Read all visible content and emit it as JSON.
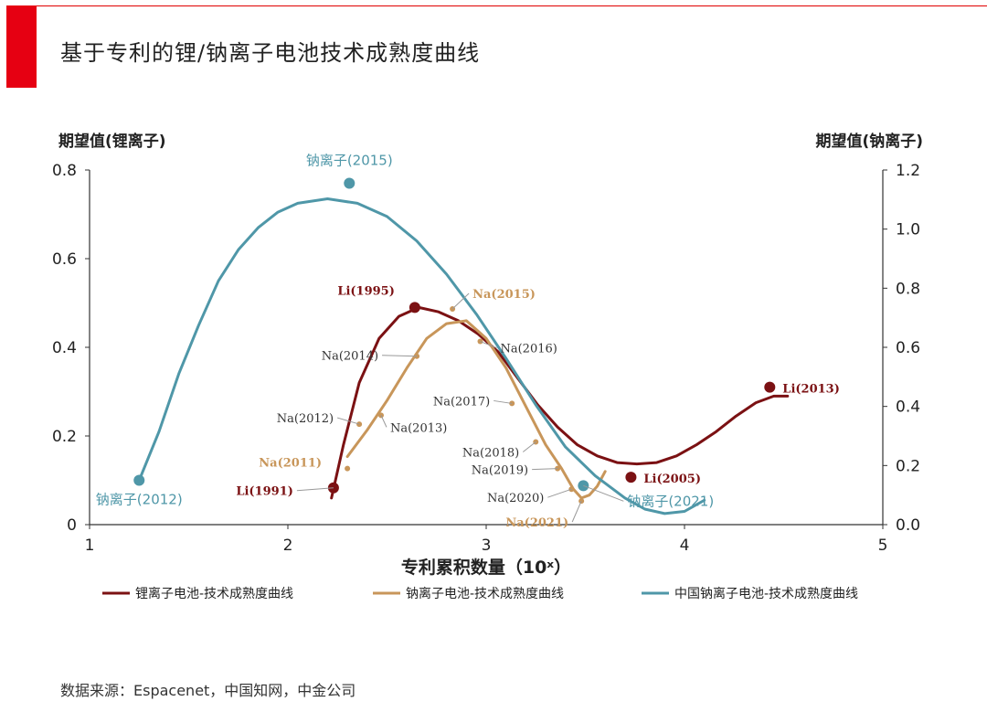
{
  "page": {
    "title": "基于专利的锂/钠离子电池技术成熟度曲线",
    "source": "数据来源：Espacenet，中国知网，中金公司"
  },
  "colors": {
    "li": "#7b1113",
    "na": "#c8965a",
    "cn_na": "#4f97a8",
    "accent": "#e60012"
  },
  "chart_data": {
    "type": "line",
    "xlabel": "专利累积数量（10ˣ）",
    "ylabel_left": "期望值(锂离子)",
    "ylabel_right": "期望值(钠离子)",
    "xlim": [
      1,
      5
    ],
    "ylim_left": [
      0,
      0.8
    ],
    "ylim_right": [
      0,
      1.2
    ],
    "x_ticks": [
      "1",
      "2",
      "3",
      "4",
      "5"
    ],
    "y_ticks_left": [
      "0",
      "0.2",
      "0.4",
      "0.6",
      "0.8"
    ],
    "y_ticks_right": [
      "0.0",
      "0.2",
      "0.4",
      "0.6",
      "0.8",
      "1.0",
      "1.2"
    ],
    "grid": false,
    "legend_position": "bottom",
    "series": [
      {
        "name": "锂离子电池-技术成熟度曲线",
        "axis": "left",
        "curve": [
          [
            2.22,
            0.06
          ],
          [
            2.28,
            0.18
          ],
          [
            2.36,
            0.32
          ],
          [
            2.46,
            0.42
          ],
          [
            2.56,
            0.47
          ],
          [
            2.66,
            0.49
          ],
          [
            2.76,
            0.48
          ],
          [
            2.86,
            0.46
          ],
          [
            2.96,
            0.43
          ],
          [
            3.06,
            0.39
          ],
          [
            3.16,
            0.33
          ],
          [
            3.26,
            0.27
          ],
          [
            3.36,
            0.22
          ],
          [
            3.46,
            0.18
          ],
          [
            3.56,
            0.155
          ],
          [
            3.66,
            0.14
          ],
          [
            3.76,
            0.137
          ],
          [
            3.86,
            0.14
          ],
          [
            3.96,
            0.155
          ],
          [
            4.06,
            0.18
          ],
          [
            4.16,
            0.21
          ],
          [
            4.26,
            0.245
          ],
          [
            4.36,
            0.275
          ],
          [
            4.45,
            0.29
          ],
          [
            4.52,
            0.29
          ]
        ],
        "points": [
          {
            "label": "Li(1991)",
            "x": 2.23,
            "y": 0.083
          },
          {
            "label": "Li(1995)",
            "x": 2.64,
            "y": 0.49
          },
          {
            "label": "Li(2005)",
            "x": 3.73,
            "y": 0.107
          },
          {
            "label": "Li(2013)",
            "x": 4.43,
            "y": 0.31
          }
        ]
      },
      {
        "name": "钠离子电池-技术成熟度曲线",
        "axis": "right",
        "curve": [
          [
            2.3,
            0.23
          ],
          [
            2.4,
            0.32
          ],
          [
            2.5,
            0.42
          ],
          [
            2.6,
            0.53
          ],
          [
            2.7,
            0.63
          ],
          [
            2.8,
            0.68
          ],
          [
            2.9,
            0.69
          ],
          [
            3.0,
            0.63
          ],
          [
            3.1,
            0.53
          ],
          [
            3.2,
            0.4
          ],
          [
            3.3,
            0.27
          ],
          [
            3.38,
            0.19
          ],
          [
            3.44,
            0.12
          ],
          [
            3.48,
            0.09
          ],
          [
            3.52,
            0.1
          ],
          [
            3.56,
            0.13
          ],
          [
            3.6,
            0.18
          ]
        ],
        "points": [
          {
            "label": "Na(2011)",
            "x": 2.3,
            "y": 0.19
          },
          {
            "label": "Na(2012)",
            "x": 2.36,
            "y": 0.34
          },
          {
            "label": "Na(2013)",
            "x": 2.47,
            "y": 0.37
          },
          {
            "label": "Na(2014)",
            "x": 2.65,
            "y": 0.57
          },
          {
            "label": "Na(2015)",
            "x": 2.83,
            "y": 0.73
          },
          {
            "label": "Na(2016)",
            "x": 2.97,
            "y": 0.62
          },
          {
            "label": "Na(2017)",
            "x": 3.13,
            "y": 0.41
          },
          {
            "label": "Na(2018)",
            "x": 3.25,
            "y": 0.28
          },
          {
            "label": "Na(2019)",
            "x": 3.36,
            "y": 0.19
          },
          {
            "label": "Na(2020)",
            "x": 3.43,
            "y": 0.12
          },
          {
            "label": "Na(2021)",
            "x": 3.48,
            "y": 0.08
          }
        ]
      },
      {
        "name": "中国钠离子电池-技术成熟度曲线",
        "axis": "left",
        "curve": [
          [
            1.25,
            0.1
          ],
          [
            1.35,
            0.21
          ],
          [
            1.45,
            0.34
          ],
          [
            1.55,
            0.45
          ],
          [
            1.65,
            0.55
          ],
          [
            1.75,
            0.62
          ],
          [
            1.85,
            0.67
          ],
          [
            1.95,
            0.705
          ],
          [
            2.05,
            0.725
          ],
          [
            2.2,
            0.735
          ],
          [
            2.35,
            0.725
          ],
          [
            2.5,
            0.695
          ],
          [
            2.65,
            0.64
          ],
          [
            2.8,
            0.565
          ],
          [
            2.95,
            0.475
          ],
          [
            3.1,
            0.375
          ],
          [
            3.25,
            0.27
          ],
          [
            3.4,
            0.175
          ],
          [
            3.55,
            0.11
          ],
          [
            3.7,
            0.06
          ],
          [
            3.8,
            0.035
          ],
          [
            3.9,
            0.025
          ],
          [
            4.0,
            0.03
          ],
          [
            4.1,
            0.055
          ]
        ],
        "points": [
          {
            "label": "钠离子(2012)",
            "x": 1.25,
            "y": 0.1
          },
          {
            "label": "钠离子(2015)",
            "x": 2.31,
            "y": 0.77
          },
          {
            "label": "钠离子(2021)",
            "x": 3.49,
            "y": 0.088
          }
        ]
      }
    ]
  }
}
